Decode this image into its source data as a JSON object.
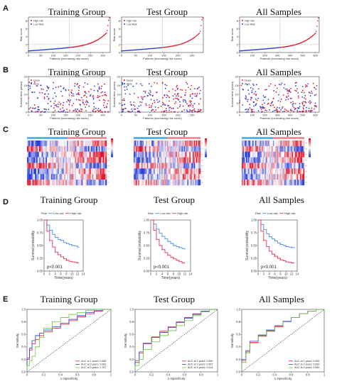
{
  "panels": {
    "A": {
      "label": "A",
      "titles": [
        "Training Group",
        "Test Group",
        "All Samples"
      ],
      "legend": [
        "High risk",
        "Low Risk"
      ],
      "xlabel": "Patients (increasing risk socre)",
      "ylabel": "Risk score"
    },
    "B": {
      "label": "B",
      "titles": [
        "Training Group",
        "Test Group",
        "All Samples"
      ],
      "legend": [
        "Dead",
        "Alive"
      ],
      "xlabel": "Patients (increasing risk socre)",
      "ylabel": "Survival time (years)"
    },
    "C": {
      "label": "C",
      "titles": [
        "Training Group",
        "Test Group",
        "All Samples"
      ]
    },
    "D": {
      "label": "D",
      "titles": [
        "Training Group",
        "Test Group",
        "All Samples"
      ],
      "legend_title": "Risk",
      "legend": [
        "Low risk",
        "High risk"
      ],
      "xlabel": "Time(years)",
      "ylabel": "Survival probability",
      "pvalue": "p<0.001"
    },
    "E": {
      "label": "E",
      "titles": [
        "Training Group",
        "Test Group",
        "All Samples"
      ],
      "xlabel": "1-Specificity",
      "ylabel": "Sensitivity",
      "auc_legends": [
        [
          "AUC at 1 years: 0.666",
          "AUC at 3 years: 0.683",
          "AUC at 5 years: 0.767"
        ],
        [
          "AUC at 1 years: 0.659",
          "AUC at 3 years: 0.657",
          "AUC at 5 years: 0.614"
        ],
        [
          "AUC at 1 years: 0.659",
          "AUC at 3 years: 0.669",
          "AUC at 5 years: 0.665"
        ]
      ]
    }
  },
  "colors": {
    "red": "#e0182d",
    "blue": "#2b3fd6",
    "grey": "#999999",
    "roc1": "#e0182d",
    "roc3": "#2b3fd6",
    "roc5": "#6ac33a",
    "km_low": "#4a8fe7",
    "km_high": "#e8305a"
  },
  "chart_data": [
    {
      "type": "scatter",
      "title": "Training Group",
      "xlabel": "Patients (increasing risk socre)",
      "ylabel": "Risk score",
      "x_ticks": [
        0,
        50,
        100,
        150,
        200,
        250,
        300
      ],
      "y_ticks": [
        0,
        2,
        4,
        6,
        8
      ],
      "xlim": [
        0,
        330
      ],
      "ylim": [
        0,
        9
      ],
      "cutoff": 165,
      "legend": [
        "High risk",
        "Low Risk"
      ],
      "n": 330
    },
    {
      "type": "scatter",
      "title": "Test Group",
      "xlabel": "Patients (increasing risk socre)",
      "ylabel": "Risk score",
      "x_ticks": [
        0,
        50,
        100,
        150,
        200,
        250
      ],
      "y_ticks": [
        0,
        2,
        4,
        6,
        8
      ],
      "xlim": [
        0,
        290
      ],
      "ylim": [
        0,
        9
      ],
      "cutoff": 145,
      "legend": [
        "High risk",
        "Low Risk"
      ],
      "n": 290
    },
    {
      "type": "scatter",
      "title": "All Samples",
      "xlabel": "Patients (increasing risk socre)",
      "ylabel": "Risk score",
      "x_ticks": [
        0,
        100,
        200,
        300,
        400,
        500,
        600
      ],
      "y_ticks": [
        0,
        2,
        4,
        6,
        8
      ],
      "xlim": [
        0,
        630
      ],
      "ylim": [
        0,
        9
      ],
      "cutoff": 320,
      "legend": [
        "High risk",
        "Low Risk"
      ],
      "n": 630
    },
    {
      "type": "scatter",
      "title": "Training Group",
      "xlabel": "Patients (increasing risk socre)",
      "ylabel": "Survival time (years)",
      "x_ticks": [
        0,
        50,
        100,
        150,
        200,
        250,
        300
      ],
      "y_ticks": [
        0,
        5,
        10,
        15,
        20
      ],
      "xlim": [
        0,
        330
      ],
      "ylim": [
        0,
        20
      ],
      "cutoff": 165,
      "legend": [
        "Dead",
        "Alive"
      ]
    },
    {
      "type": "scatter",
      "title": "Test Group",
      "xlabel": "Patients (increasing risk socre)",
      "ylabel": "Survival time (years)",
      "x_ticks": [
        0,
        50,
        100,
        150,
        200,
        250
      ],
      "y_ticks": [
        0,
        5,
        10,
        15,
        20
      ],
      "xlim": [
        0,
        290
      ],
      "ylim": [
        0,
        20
      ],
      "cutoff": 145,
      "legend": [
        "Dead",
        "Alive"
      ]
    },
    {
      "type": "scatter",
      "title": "All Samples",
      "xlabel": "Patients (increasing risk socre)",
      "ylabel": "Survival time (years)",
      "x_ticks": [
        0,
        100,
        200,
        300,
        400,
        500,
        600
      ],
      "y_ticks": [
        0,
        5,
        10,
        15,
        20
      ],
      "xlim": [
        0,
        630
      ],
      "ylim": [
        0,
        20
      ],
      "cutoff": 320,
      "legend": [
        "Dead",
        "Alive"
      ]
    },
    {
      "type": "heatmap",
      "title": "Training Group",
      "rows": 8,
      "cols": 60,
      "color_scale": [
        "#2b3fd6",
        "#ffffff",
        "#e0182d"
      ]
    },
    {
      "type": "heatmap",
      "title": "Test Group",
      "rows": 8,
      "cols": 60,
      "color_scale": [
        "#2b3fd6",
        "#ffffff",
        "#e0182d"
      ]
    },
    {
      "type": "heatmap",
      "title": "All Samples",
      "rows": 8,
      "cols": 60,
      "color_scale": [
        "#2b3fd6",
        "#ffffff",
        "#e0182d"
      ]
    },
    {
      "type": "line",
      "title": "Training Group",
      "xlabel": "Time(years)",
      "ylabel": "Survival probability",
      "x_ticks": [
        0,
        2,
        4,
        6,
        8,
        10,
        12,
        14
      ],
      "y_ticks": [
        0.0,
        0.25,
        0.5,
        0.75,
        1.0
      ],
      "xlim": [
        0,
        14
      ],
      "ylim": [
        0,
        1
      ],
      "annotation": "p<0.001",
      "series": [
        {
          "name": "Low risk",
          "x": [
            0,
            1,
            2,
            3,
            4,
            5,
            6,
            7,
            8,
            9,
            10,
            11,
            12,
            12.5
          ],
          "y": [
            1.0,
            0.9,
            0.8,
            0.72,
            0.66,
            0.62,
            0.6,
            0.56,
            0.54,
            0.52,
            0.5,
            0.49,
            0.47,
            0.46
          ]
        },
        {
          "name": "High risk",
          "x": [
            0,
            1,
            2,
            3,
            4,
            5,
            6,
            7,
            8,
            9,
            10,
            11,
            12,
            12.5
          ],
          "y": [
            1.0,
            0.78,
            0.6,
            0.47,
            0.37,
            0.32,
            0.28,
            0.24,
            0.21,
            0.19,
            0.18,
            0.17,
            0.16,
            0.16
          ]
        }
      ]
    },
    {
      "type": "line",
      "title": "Test Group",
      "xlabel": "Time(years)",
      "ylabel": "Survival probability",
      "x_ticks": [
        0,
        2,
        4,
        6,
        8,
        10,
        12,
        14
      ],
      "y_ticks": [
        0.0,
        0.25,
        0.5,
        0.75,
        1.0
      ],
      "xlim": [
        0,
        14
      ],
      "ylim": [
        0,
        1
      ],
      "annotation": "p<0.001",
      "series": [
        {
          "name": "Low risk",
          "x": [
            0,
            1,
            2,
            3,
            4,
            5,
            6,
            7,
            8,
            9,
            10,
            11,
            12
          ],
          "y": [
            1.0,
            0.92,
            0.82,
            0.74,
            0.68,
            0.63,
            0.58,
            0.54,
            0.5,
            0.48,
            0.46,
            0.44,
            0.43
          ]
        },
        {
          "name": "High risk",
          "x": [
            0,
            1,
            2,
            3,
            4,
            5,
            6,
            7,
            8,
            9,
            10,
            11,
            12
          ],
          "y": [
            1.0,
            0.8,
            0.62,
            0.5,
            0.42,
            0.36,
            0.31,
            0.27,
            0.24,
            0.21,
            0.19,
            0.16,
            0.16
          ]
        }
      ]
    },
    {
      "type": "line",
      "title": "All Samples",
      "xlabel": "Time(years)",
      "ylabel": "Survival probability",
      "x_ticks": [
        0,
        2,
        4,
        6,
        8,
        10,
        12,
        14
      ],
      "y_ticks": [
        0.0,
        0.25,
        0.5,
        0.75,
        1.0
      ],
      "xlim": [
        0,
        14
      ],
      "ylim": [
        0,
        1
      ],
      "annotation": "p<0.001",
      "series": [
        {
          "name": "Low risk",
          "x": [
            0,
            1,
            2,
            3,
            4,
            5,
            6,
            7,
            8,
            9,
            10,
            11,
            12,
            13
          ],
          "y": [
            1.0,
            0.91,
            0.81,
            0.73,
            0.67,
            0.63,
            0.59,
            0.55,
            0.52,
            0.5,
            0.48,
            0.47,
            0.46,
            0.45
          ]
        },
        {
          "name": "High risk",
          "x": [
            0,
            1,
            2,
            3,
            4,
            5,
            6,
            7,
            8,
            9,
            10,
            11,
            12,
            13
          ],
          "y": [
            1.0,
            0.78,
            0.6,
            0.48,
            0.39,
            0.33,
            0.29,
            0.25,
            0.22,
            0.2,
            0.18,
            0.17,
            0.16,
            0.16
          ]
        }
      ]
    },
    {
      "type": "line",
      "title": "Training Group",
      "xlabel": "1-Specificity",
      "ylabel": "Sensitivity",
      "x_ticks": [
        0.0,
        0.2,
        0.4,
        0.6,
        0.8,
        1.0
      ],
      "y_ticks": [
        0.0,
        0.2,
        0.4,
        0.6,
        0.8,
        1.0
      ],
      "xlim": [
        0,
        1
      ],
      "ylim": [
        0,
        1
      ],
      "series": [
        {
          "name": "AUC at 1 years: 0.666",
          "x": [
            0,
            0.03,
            0.06,
            0.1,
            0.15,
            0.2,
            0.3,
            0.4,
            0.5,
            0.6,
            0.7,
            0.8,
            0.9,
            1.0
          ],
          "y": [
            0,
            0.2,
            0.35,
            0.45,
            0.52,
            0.58,
            0.64,
            0.7,
            0.76,
            0.82,
            0.88,
            0.93,
            0.97,
            1.0
          ]
        },
        {
          "name": "AUC at 3 years: 0.683",
          "x": [
            0,
            0.03,
            0.06,
            0.1,
            0.15,
            0.2,
            0.3,
            0.4,
            0.5,
            0.6,
            0.7,
            0.8,
            0.9,
            1.0
          ],
          "y": [
            0,
            0.22,
            0.38,
            0.5,
            0.58,
            0.62,
            0.67,
            0.72,
            0.78,
            0.84,
            0.9,
            0.95,
            0.98,
            1.0
          ]
        },
        {
          "name": "AUC at 5 years: 0.767",
          "x": [
            0,
            0.03,
            0.06,
            0.1,
            0.15,
            0.2,
            0.3,
            0.4,
            0.5,
            0.6,
            0.7,
            0.8,
            0.9,
            1.0
          ],
          "y": [
            0,
            0.1,
            0.18,
            0.25,
            0.4,
            0.55,
            0.7,
            0.8,
            0.87,
            0.92,
            0.95,
            0.98,
            1.0,
            1.0
          ]
        }
      ]
    },
    {
      "type": "line",
      "title": "Test Group",
      "xlabel": "1-Specificity",
      "ylabel": "Sensitivity",
      "x_ticks": [
        0.0,
        0.2,
        0.4,
        0.6,
        0.8,
        1.0
      ],
      "y_ticks": [
        0.0,
        0.2,
        0.4,
        0.6,
        0.8,
        1.0
      ],
      "xlim": [
        0,
        1
      ],
      "ylim": [
        0,
        1
      ],
      "series": [
        {
          "name": "AUC at 1 years: 0.659",
          "x": [
            0,
            0.05,
            0.1,
            0.2,
            0.3,
            0.4,
            0.5,
            0.6,
            0.7,
            0.8,
            0.9,
            1.0
          ],
          "y": [
            0,
            0.15,
            0.3,
            0.45,
            0.56,
            0.65,
            0.72,
            0.8,
            0.87,
            0.93,
            0.97,
            1.0
          ]
        },
        {
          "name": "AUC at 3 years: 0.657",
          "x": [
            0,
            0.05,
            0.1,
            0.2,
            0.3,
            0.4,
            0.5,
            0.6,
            0.7,
            0.8,
            0.9,
            1.0
          ],
          "y": [
            0,
            0.18,
            0.32,
            0.46,
            0.55,
            0.63,
            0.71,
            0.79,
            0.86,
            0.92,
            0.97,
            1.0
          ]
        },
        {
          "name": "AUC at 5 years: 0.614",
          "x": [
            0,
            0.05,
            0.1,
            0.2,
            0.3,
            0.4,
            0.5,
            0.6,
            0.7,
            0.8,
            0.9,
            1.0
          ],
          "y": [
            0,
            0.1,
            0.2,
            0.36,
            0.48,
            0.58,
            0.66,
            0.74,
            0.82,
            0.9,
            0.96,
            1.0
          ]
        }
      ]
    },
    {
      "type": "line",
      "title": "All Samples",
      "xlabel": "1-Specificity",
      "ylabel": "Sensitivity",
      "x_ticks": [
        0.0,
        0.2,
        0.4,
        0.6,
        0.8,
        1.0
      ],
      "y_ticks": [
        0.0,
        0.2,
        0.4,
        0.6,
        0.8,
        1.0
      ],
      "xlim": [
        0,
        1
      ],
      "ylim": [
        0,
        1
      ],
      "series": [
        {
          "name": "AUC at 1 years: 0.659",
          "x": [
            0,
            0.05,
            0.1,
            0.2,
            0.3,
            0.4,
            0.5,
            0.6,
            0.7,
            0.8,
            0.9,
            1.0
          ],
          "y": [
            0,
            0.18,
            0.32,
            0.47,
            0.57,
            0.65,
            0.72,
            0.8,
            0.87,
            0.93,
            0.97,
            1.0
          ]
        },
        {
          "name": "AUC at 3 years: 0.669",
          "x": [
            0,
            0.05,
            0.1,
            0.2,
            0.3,
            0.4,
            0.5,
            0.6,
            0.7,
            0.8,
            0.9,
            1.0
          ],
          "y": [
            0,
            0.2,
            0.34,
            0.49,
            0.59,
            0.67,
            0.74,
            0.81,
            0.87,
            0.93,
            0.97,
            1.0
          ]
        },
        {
          "name": "AUC at 5 years: 0.665",
          "x": [
            0,
            0.05,
            0.1,
            0.2,
            0.3,
            0.4,
            0.5,
            0.6,
            0.7,
            0.8,
            0.9,
            1.0
          ],
          "y": [
            0,
            0.15,
            0.3,
            0.46,
            0.58,
            0.66,
            0.73,
            0.8,
            0.87,
            0.93,
            0.97,
            1.0
          ]
        }
      ]
    }
  ]
}
